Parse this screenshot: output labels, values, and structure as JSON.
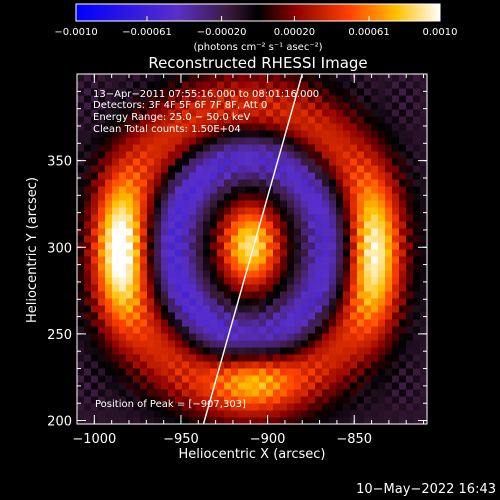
{
  "chart_data": {
    "type": "heatmap",
    "title": "Reconstructed RHESSI Image",
    "xlabel": "Heliocentric X (arcsec)",
    "ylabel": "Heliocentric Y (arcsec)",
    "xlim": [
      -1010,
      -808
    ],
    "ylim": [
      198,
      400
    ],
    "x_ticks": [
      -1000,
      -950,
      -900,
      -850
    ],
    "x_tick_labels": [
      "−1000",
      "−950",
      "−900",
      "−850"
    ],
    "y_ticks": [
      200,
      250,
      300,
      350
    ],
    "y_tick_labels": [
      "200",
      "250",
      "300",
      "350"
    ],
    "colorbar": {
      "range": [
        -0.001,
        0.001
      ],
      "ticks": [
        -0.001,
        -0.00061,
        -0.0002,
        0.0002,
        0.00061,
        0.001
      ],
      "tick_labels": [
        "−0.0010",
        "−0.00061",
        "−0.00020",
        "0.00020",
        "0.00061",
        "0.0010"
      ],
      "label": "(photons cm⁻² s⁻¹ asec⁻²)"
    },
    "annotations": [
      "13−Apr−2011 07:55:16.000 to 08:01:16.000",
      "Detectors: 3F 4F 5F 6F 7F 8F, Att 0",
      "Energy Range: 25.0 − 50.0 keV",
      "Clean      Total counts: 1.50E+04"
    ],
    "peak_label": "Position of Peak = [−907,303]",
    "peak": [
      -907,
      303
    ],
    "limb_line": [
      [
        -937,
        198
      ],
      [
        -880,
        400
      ]
    ],
    "sources": [
      {
        "x": -910,
        "y": 301,
        "sx": 13,
        "sy": 18,
        "amp": 1.0
      },
      {
        "x": -985,
        "y": 298,
        "sx": 10,
        "sy": 28,
        "amp": 0.7
      },
      {
        "x": -838,
        "y": 296,
        "sx": 10,
        "sy": 30,
        "amp": 0.58
      },
      {
        "x": -908,
        "y": 225,
        "sx": 16,
        "sy": 12,
        "amp": 0.42
      }
    ],
    "ring": {
      "x": -912,
      "y": 300,
      "rx": 72,
      "ry": 80,
      "width": 15,
      "amp": 0.52
    },
    "negative": {
      "x": -910,
      "y": 300,
      "rx": 46,
      "ry": 54,
      "width": 10,
      "amp": -0.48
    },
    "background": -0.12
  },
  "timestamp": "10−May−2022 16:43"
}
